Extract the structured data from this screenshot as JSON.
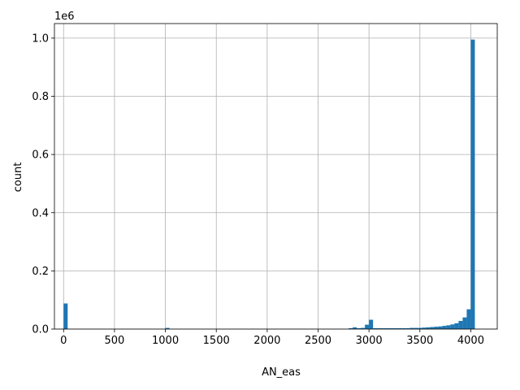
{
  "chart_data": {
    "type": "bar",
    "subtype": "histogram",
    "xlabel": "AN_eas",
    "ylabel": "count",
    "scale_label": "1e6",
    "xlim": [
      -90,
      4260
    ],
    "ylim": [
      0,
      1.05
    ],
    "x_ticks": [
      0,
      500,
      1000,
      1500,
      2000,
      2500,
      3000,
      3500,
      4000
    ],
    "y_ticks": [
      0.0,
      0.2,
      0.4,
      0.6,
      0.8,
      1.0
    ],
    "y_tick_labels": [
      "0.0",
      "0.2",
      "0.4",
      "0.6",
      "0.8",
      "1.0"
    ],
    "grid": true,
    "bar_color": "#1f77b4",
    "bin_width": 40,
    "bins": [
      {
        "x": 0,
        "value": 0.088
      },
      {
        "x": 1000,
        "value": 0.004
      },
      {
        "x": 2800,
        "value": 0.003
      },
      {
        "x": 2840,
        "value": 0.006
      },
      {
        "x": 2880,
        "value": 0.003
      },
      {
        "x": 2920,
        "value": 0.004
      },
      {
        "x": 2960,
        "value": 0.015
      },
      {
        "x": 3000,
        "value": 0.032
      },
      {
        "x": 3040,
        "value": 0.003
      },
      {
        "x": 3080,
        "value": 0.003
      },
      {
        "x": 3120,
        "value": 0.003
      },
      {
        "x": 3160,
        "value": 0.003
      },
      {
        "x": 3200,
        "value": 0.003
      },
      {
        "x": 3240,
        "value": 0.003
      },
      {
        "x": 3280,
        "value": 0.003
      },
      {
        "x": 3320,
        "value": 0.003
      },
      {
        "x": 3360,
        "value": 0.003
      },
      {
        "x": 3400,
        "value": 0.004
      },
      {
        "x": 3440,
        "value": 0.004
      },
      {
        "x": 3480,
        "value": 0.004
      },
      {
        "x": 3520,
        "value": 0.005
      },
      {
        "x": 3560,
        "value": 0.006
      },
      {
        "x": 3600,
        "value": 0.007
      },
      {
        "x": 3640,
        "value": 0.008
      },
      {
        "x": 3680,
        "value": 0.009
      },
      {
        "x": 3720,
        "value": 0.011
      },
      {
        "x": 3760,
        "value": 0.013
      },
      {
        "x": 3800,
        "value": 0.016
      },
      {
        "x": 3840,
        "value": 0.02
      },
      {
        "x": 3880,
        "value": 0.028
      },
      {
        "x": 3920,
        "value": 0.04
      },
      {
        "x": 3960,
        "value": 0.068
      },
      {
        "x": 4000,
        "value": 0.995
      }
    ]
  }
}
